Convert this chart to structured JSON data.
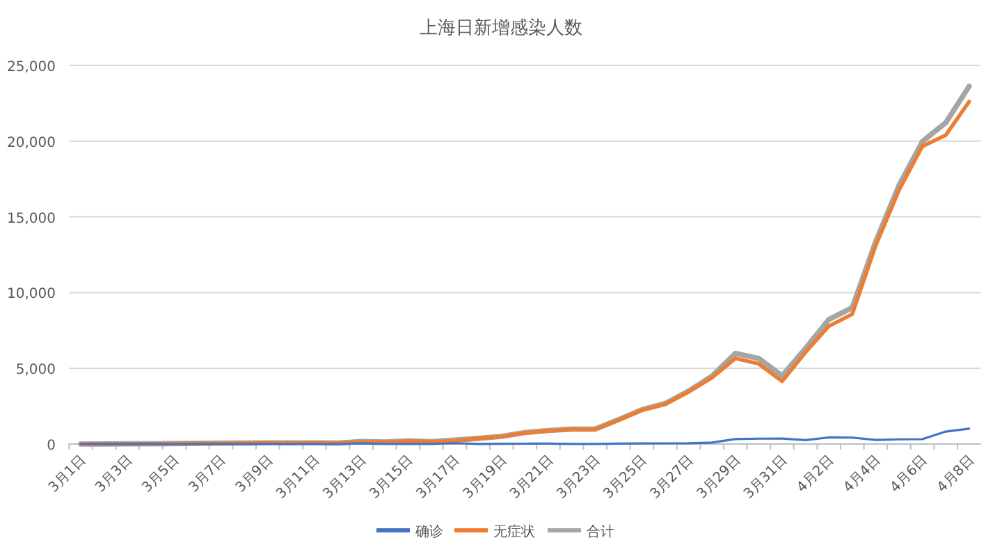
{
  "chart_data": {
    "type": "line",
    "title": "上海日新增感染人数",
    "categories": [
      "3月1日",
      null,
      "3月3日",
      null,
      "3月5日",
      null,
      "3月7日",
      null,
      "3月9日",
      null,
      "3月11日",
      null,
      "3月13日",
      null,
      "3月15日",
      null,
      "3月17日",
      null,
      "3月19日",
      null,
      "3月21日",
      null,
      "3月23日",
      null,
      "3月25日",
      null,
      "3月27日",
      null,
      "3月29日",
      null,
      "3月31日",
      null,
      "4月2日",
      null,
      "4月4日",
      null,
      "4月6日",
      null,
      "4月8日"
    ],
    "series": [
      {
        "name": "确诊",
        "color": "#4472c4",
        "values": [
          1,
          3,
          2,
          3,
          0,
          3,
          4,
          3,
          4,
          11,
          5,
          1,
          41,
          9,
          5,
          8,
          57,
          8,
          17,
          24,
          31,
          4,
          4,
          29,
          38,
          45,
          50,
          96,
          326,
          355,
          358,
          260,
          438,
          425,
          268,
          311,
          322,
          824,
          1015
        ]
      },
      {
        "name": "无症状",
        "color": "#ed7d31",
        "values": [
          1,
          5,
          14,
          16,
          28,
          45,
          51,
          62,
          76,
          64,
          78,
          64,
          128,
          130,
          197,
          150,
          203,
          366,
          492,
          734,
          865,
          977,
          979,
          1580,
          2231,
          2631,
          3450,
          4381,
          5656,
          5298,
          4144,
          6051,
          7788,
          8581,
          13086,
          16766,
          19660,
          20398,
          22609
        ]
      },
      {
        "name": "合计",
        "color": "#a5a5a5",
        "values": [
          2,
          8,
          16,
          19,
          28,
          48,
          55,
          65,
          80,
          75,
          83,
          65,
          169,
          139,
          202,
          158,
          260,
          374,
          509,
          758,
          896,
          981,
          983,
          1609,
          2269,
          2676,
          3500,
          4477,
          5982,
          5653,
          4502,
          6311,
          8226,
          9006,
          13354,
          17077,
          19982,
          21222,
          23624
        ]
      }
    ],
    "ylim": [
      0,
      25000
    ],
    "yticks": [
      {
        "value": 0,
        "label": "0"
      },
      {
        "value": 5000,
        "label": "5,000"
      },
      {
        "value": 10000,
        "label": "10,000"
      },
      {
        "value": 15000,
        "label": "15,000"
      },
      {
        "value": 20000,
        "label": "20,000"
      },
      {
        "value": 25000,
        "label": "25,000"
      }
    ],
    "grid": "y",
    "legend": "bottom",
    "marker": "none",
    "line_style": "solid"
  }
}
